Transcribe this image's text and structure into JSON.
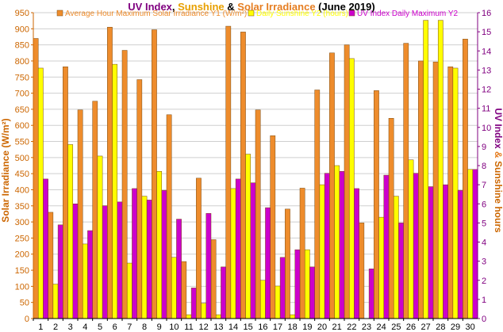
{
  "chart_data": {
    "type": "bar",
    "title": {
      "part1": "UV Index",
      "sep1": ", ",
      "part2": "Sunshine",
      "sep2": " & ",
      "part3": "Solar Irradiance",
      "part4": " (June 2019)"
    },
    "colors": {
      "title_uv": "#800080",
      "title_sun": "#e8a000",
      "title_solar": "#e67e22",
      "title_rest": "#000000",
      "solar": "#ee8c2c",
      "sunshine": "#ffff00",
      "uv": "#cc00cc",
      "bar_edge": "#7a4a10",
      "y1_axis": "#cc6600",
      "y2_axis": "#800080",
      "y2_amp": "#e67e22",
      "y2_sun": "#cc6600",
      "grid": "#cfcfcf"
    },
    "ylabel": "Solar Irradiance (W/m²)",
    "y2label": {
      "part1": "UV Index",
      "part2": " & ",
      "part3": "Sunshine hours"
    },
    "ylim": [
      0,
      950
    ],
    "y_ticks": [
      0,
      50,
      100,
      150,
      200,
      250,
      300,
      350,
      400,
      450,
      500,
      550,
      600,
      650,
      700,
      750,
      800,
      850,
      900,
      950
    ],
    "y2lim": [
      0,
      16
    ],
    "y2_ticks": [
      0,
      1,
      2,
      3,
      4,
      5,
      6,
      7,
      8,
      9,
      10,
      11,
      12,
      13,
      14,
      15,
      16
    ],
    "categories": [
      "1",
      "2",
      "3",
      "4",
      "5",
      "6",
      "7",
      "8",
      "9",
      "10",
      "11",
      "12",
      "13",
      "14",
      "15",
      "16",
      "17",
      "18",
      "19",
      "20",
      "21",
      "22",
      "23",
      "24",
      "25",
      "26",
      "27",
      "28",
      "29",
      "30"
    ],
    "grid": true,
    "legend_position": "top",
    "series": [
      {
        "name": "Average Hour Maximum Solar Irradiance Y1 (W/m²)",
        "axis": "y1",
        "values": [
          870,
          330,
          782,
          648,
          675,
          905,
          833,
          742,
          897,
          633,
          177,
          436,
          245,
          908,
          890,
          648,
          568,
          340,
          405,
          710,
          825,
          850,
          297,
          708,
          622,
          855,
          800,
          797,
          782,
          868
        ]
      },
      {
        "name": "Daily Sunshine Y2 (hours)",
        "axis": "y2",
        "values": [
          13.1,
          1.8,
          9.1,
          3.9,
          8.5,
          13.3,
          2.9,
          6.4,
          7.7,
          3.2,
          0.2,
          0.8,
          0.2,
          6.8,
          8.6,
          2.0,
          1.7,
          0.2,
          3.6,
          7.0,
          8.0,
          13.6,
          0.0,
          5.3,
          6.4,
          8.3,
          15.6,
          15.6,
          13.1,
          7.8
        ]
      },
      {
        "name": "UV Index Daily Maximum Y2",
        "axis": "y2",
        "values": [
          7.3,
          4.9,
          6.0,
          4.6,
          5.9,
          6.1,
          6.8,
          6.2,
          6.7,
          5.2,
          1.6,
          5.5,
          2.7,
          7.3,
          7.1,
          5.8,
          3.2,
          3.6,
          2.7,
          7.6,
          7.7,
          6.8,
          2.6,
          7.5,
          5.0,
          7.6,
          6.9,
          7.0,
          6.7,
          7.8
        ]
      }
    ]
  }
}
